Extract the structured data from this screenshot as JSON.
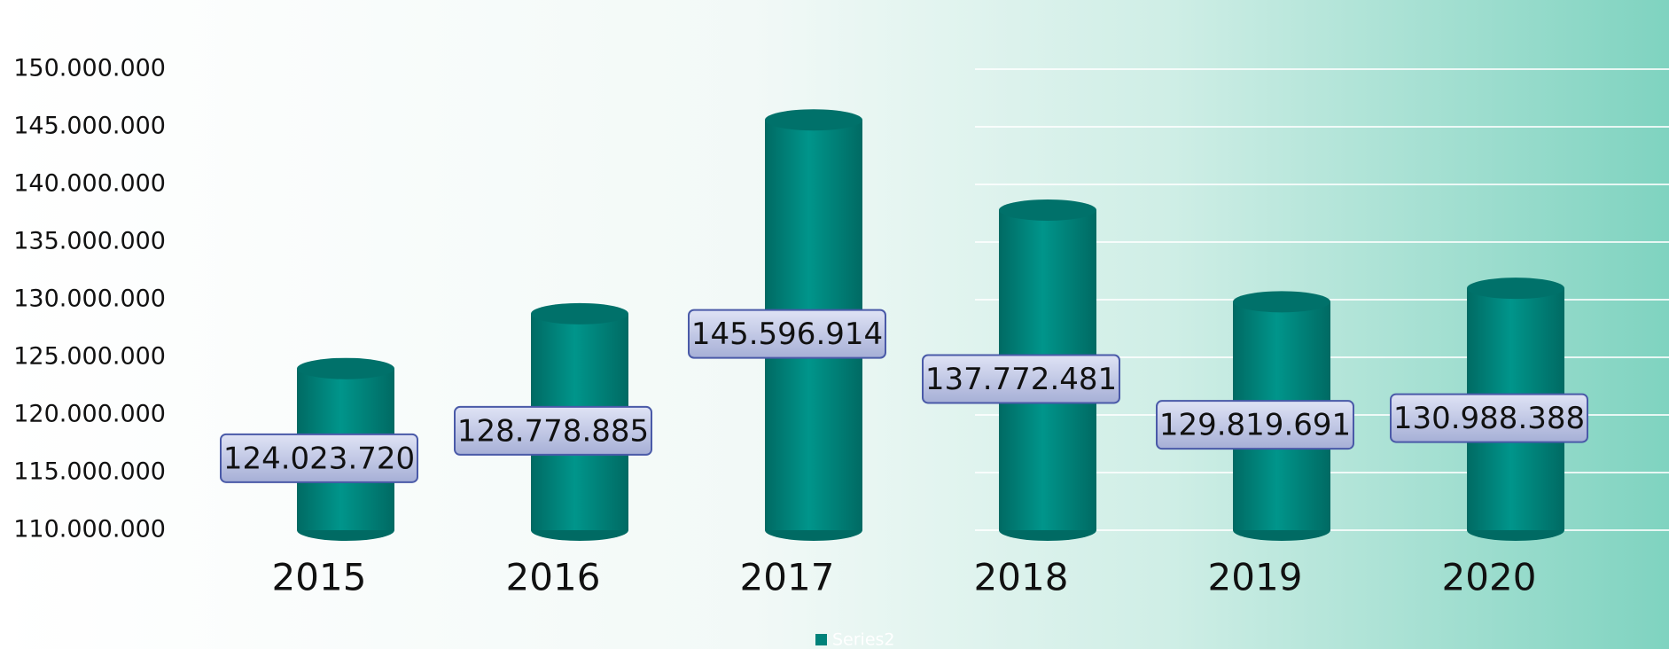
{
  "chart_data": {
    "type": "bar",
    "categories": [
      "2015",
      "2016",
      "2017",
      "2018",
      "2019",
      "2020"
    ],
    "series": [
      {
        "name": "Series2",
        "color": "#00827a",
        "values": [
          124023720,
          128778885,
          145596914,
          137772481,
          129819691,
          130988388
        ],
        "value_labels": [
          "124.023.720",
          "128.778.885",
          "145.596.914",
          "137.772.481",
          "129.819.691",
          "130.988.388"
        ]
      }
    ],
    "ylim": [
      110000000,
      150000000
    ],
    "yticks": [
      {
        "value": 110000000,
        "label": "110.000.000"
      },
      {
        "value": 115000000,
        "label": "115.000.000"
      },
      {
        "value": 120000000,
        "label": "120.000.000"
      },
      {
        "value": 125000000,
        "label": "125.000.000"
      },
      {
        "value": 130000000,
        "label": "130.000.000"
      },
      {
        "value": 135000000,
        "label": "135.000.000"
      },
      {
        "value": 140000000,
        "label": "140.000.000"
      },
      {
        "value": 145000000,
        "label": "145.000.000"
      },
      {
        "value": 150000000,
        "label": "150.000.000"
      }
    ],
    "grid": true,
    "legend": "bottom"
  }
}
